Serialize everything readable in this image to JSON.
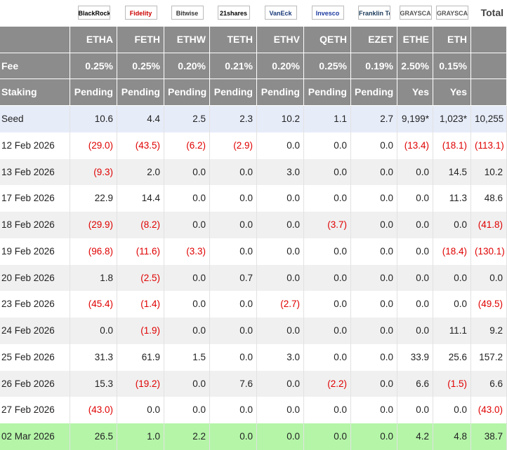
{
  "header": {
    "logos": [
      "BlackRock",
      "Fidelity",
      "Bitwise",
      "21shares",
      "VanEck",
      "Invesco",
      "Franklin Templeton",
      "GRAYSCALE",
      "GRAYSCALE"
    ],
    "total": "Total"
  },
  "tickers": [
    "ETHA",
    "FETH",
    "ETHW",
    "TETH",
    "ETHV",
    "QETH",
    "EZET",
    "ETHE",
    "ETH"
  ],
  "fee": {
    "label": "Fee",
    "values": [
      "0.25%",
      "0.25%",
      "0.20%",
      "0.21%",
      "0.20%",
      "0.25%",
      "0.19%",
      "2.50%",
      "0.15%"
    ]
  },
  "staking": {
    "label": "Staking",
    "values": [
      "Pending",
      "Pending",
      "Pending",
      "Pending",
      "Pending",
      "Pending",
      "Pending",
      "Yes",
      "Yes"
    ]
  },
  "rows": [
    {
      "label": "Seed",
      "cells": [
        "10.6",
        "4.4",
        "2.5",
        "2.3",
        "10.2",
        "1.1",
        "2.7",
        "9,199*",
        "1,023*",
        "10,255"
      ]
    },
    {
      "label": "12 Feb 2026",
      "cells": [
        "(29.0)",
        "(43.5)",
        "(6.2)",
        "(2.9)",
        "0.0",
        "0.0",
        "0.0",
        "(13.4)",
        "(18.1)",
        "(113.1)"
      ]
    },
    {
      "label": "13 Feb 2026",
      "cells": [
        "(9.3)",
        "2.0",
        "0.0",
        "0.0",
        "3.0",
        "0.0",
        "0.0",
        "0.0",
        "14.5",
        "10.2"
      ]
    },
    {
      "label": "17 Feb 2026",
      "cells": [
        "22.9",
        "14.4",
        "0.0",
        "0.0",
        "0.0",
        "0.0",
        "0.0",
        "0.0",
        "11.3",
        "48.6"
      ]
    },
    {
      "label": "18 Feb 2026",
      "cells": [
        "(29.9)",
        "(8.2)",
        "0.0",
        "0.0",
        "0.0",
        "(3.7)",
        "0.0",
        "0.0",
        "0.0",
        "(41.8)"
      ]
    },
    {
      "label": "19 Feb 2026",
      "cells": [
        "(96.8)",
        "(11.6)",
        "(3.3)",
        "0.0",
        "0.0",
        "0.0",
        "0.0",
        "0.0",
        "(18.4)",
        "(130.1)"
      ]
    },
    {
      "label": "20 Feb 2026",
      "cells": [
        "1.8",
        "(2.5)",
        "0.0",
        "0.7",
        "0.0",
        "0.0",
        "0.0",
        "0.0",
        "0.0",
        "0.0"
      ]
    },
    {
      "label": "23 Feb 2026",
      "cells": [
        "(45.4)",
        "(1.4)",
        "0.0",
        "0.0",
        "(2.7)",
        "0.0",
        "0.0",
        "0.0",
        "0.0",
        "(49.5)"
      ]
    },
    {
      "label": "24 Feb 2026",
      "cells": [
        "0.0",
        "(1.9)",
        "0.0",
        "0.0",
        "0.0",
        "0.0",
        "0.0",
        "0.0",
        "11.1",
        "9.2"
      ]
    },
    {
      "label": "25 Feb 2026",
      "cells": [
        "31.3",
        "61.9",
        "1.5",
        "0.0",
        "3.0",
        "0.0",
        "0.0",
        "33.9",
        "25.6",
        "157.2"
      ]
    },
    {
      "label": "26 Feb 2026",
      "cells": [
        "15.3",
        "(19.2)",
        "0.0",
        "7.6",
        "0.0",
        "(2.2)",
        "0.0",
        "6.6",
        "(1.5)",
        "6.6"
      ]
    },
    {
      "label": "27 Feb 2026",
      "cells": [
        "(43.0)",
        "0.0",
        "0.0",
        "0.0",
        "0.0",
        "0.0",
        "0.0",
        "0.0",
        "0.0",
        "(43.0)"
      ]
    },
    {
      "label": "02 Mar 2026",
      "cells": [
        "26.5",
        "1.0",
        "2.2",
        "0.0",
        "0.0",
        "0.0",
        "0.0",
        "4.2",
        "4.8",
        "38.7"
      ]
    }
  ]
}
